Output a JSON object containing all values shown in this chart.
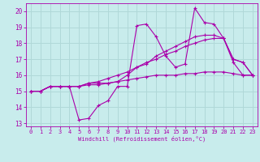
{
  "xlabel": "Windchill (Refroidissement éolien,°C)",
  "background_color": "#c8ecec",
  "grid_color": "#b0d8d8",
  "line_color": "#aa00aa",
  "xlim": [
    -0.5,
    23.5
  ],
  "ylim": [
    12.8,
    20.5
  ],
  "xticks": [
    0,
    1,
    2,
    3,
    4,
    5,
    6,
    7,
    8,
    9,
    10,
    11,
    12,
    13,
    14,
    15,
    16,
    17,
    18,
    19,
    20,
    21,
    22,
    23
  ],
  "yticks": [
    13,
    14,
    15,
    16,
    17,
    18,
    19,
    20
  ],
  "series": [
    [
      15.0,
      15.0,
      15.3,
      15.3,
      15.3,
      13.2,
      13.3,
      14.1,
      14.4,
      15.3,
      15.3,
      19.1,
      19.2,
      18.4,
      17.2,
      16.5,
      16.7,
      20.2,
      19.3,
      19.2,
      18.3,
      16.8,
      16.0,
      16.0
    ],
    [
      15.0,
      15.0,
      15.3,
      15.3,
      15.3,
      15.3,
      15.4,
      15.4,
      15.5,
      15.6,
      16.0,
      16.5,
      16.7,
      17.2,
      17.5,
      17.8,
      18.1,
      18.4,
      18.5,
      18.5,
      18.3,
      17.0,
      16.8,
      16.0
    ],
    [
      15.0,
      15.0,
      15.3,
      15.3,
      15.3,
      15.3,
      15.5,
      15.6,
      15.8,
      16.0,
      16.2,
      16.5,
      16.8,
      17.0,
      17.3,
      17.5,
      17.8,
      18.0,
      18.2,
      18.3,
      18.3,
      17.0,
      16.8,
      16.0
    ],
    [
      15.0,
      15.0,
      15.3,
      15.3,
      15.3,
      15.3,
      15.5,
      15.5,
      15.5,
      15.6,
      15.7,
      15.8,
      15.9,
      16.0,
      16.0,
      16.0,
      16.1,
      16.1,
      16.2,
      16.2,
      16.2,
      16.1,
      16.0,
      16.0
    ]
  ]
}
